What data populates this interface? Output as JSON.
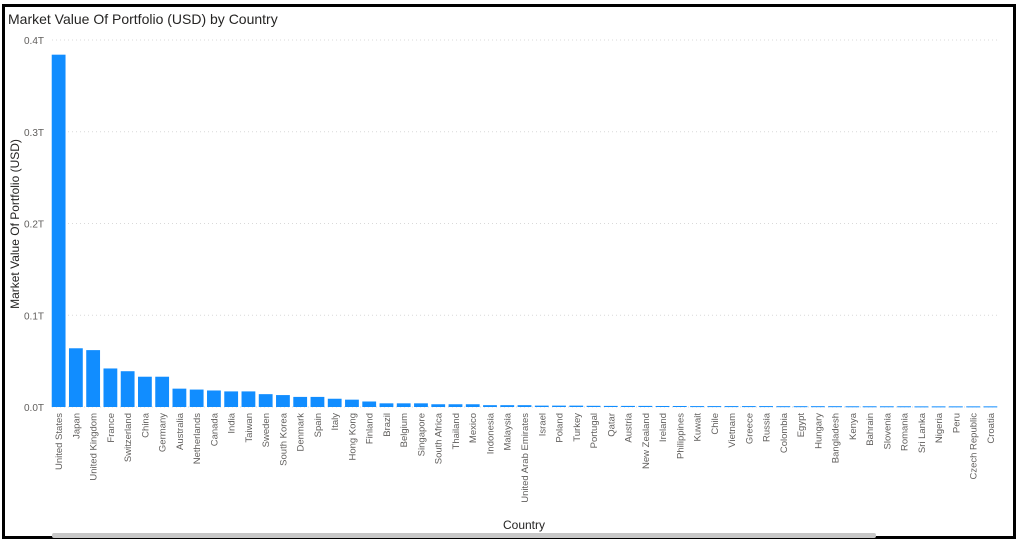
{
  "chart_data": {
    "type": "bar",
    "title": "Market Value Of Portfolio (USD) by Country",
    "xlabel": "Country",
    "ylabel": "Market Value Of Portfolio (USD)",
    "ylim": [
      0,
      0.4
    ],
    "yticks": [
      "0.0T",
      "0.1T",
      "0.2T",
      "0.3T",
      "0.4T"
    ],
    "grid": true,
    "color": "#118DFF",
    "categories": [
      "United States",
      "Japan",
      "United Kingdom",
      "France",
      "Switzerland",
      "China",
      "Germany",
      "Australia",
      "Netherlands",
      "Canada",
      "India",
      "Taiwan",
      "Sweden",
      "South Korea",
      "Denmark",
      "Spain",
      "Italy",
      "Hong Kong",
      "Finland",
      "Brazil",
      "Belgium",
      "Singapore",
      "South Africa",
      "Thailand",
      "Mexico",
      "Indonesia",
      "Malaysia",
      "United Arab Emirates",
      "Israel",
      "Poland",
      "Turkey",
      "Portugal",
      "Qatar",
      "Austria",
      "New Zealand",
      "Ireland",
      "Philippines",
      "Kuwait",
      "Chile",
      "Vietnam",
      "Greece",
      "Russia",
      "Colombia",
      "Egypt",
      "Hungary",
      "Bangladesh",
      "Kenya",
      "Bahrain",
      "Slovenia",
      "Romania",
      "Sri Lanka",
      "Nigeria",
      "Peru",
      "Czech Republic",
      "Croatia"
    ],
    "values": [
      0.384,
      0.064,
      0.062,
      0.042,
      0.039,
      0.033,
      0.033,
      0.02,
      0.019,
      0.018,
      0.017,
      0.017,
      0.014,
      0.013,
      0.011,
      0.011,
      0.009,
      0.008,
      0.006,
      0.004,
      0.004,
      0.004,
      0.003,
      0.003,
      0.003,
      0.002,
      0.002,
      0.002,
      0.0015,
      0.0015,
      0.0015,
      0.0013,
      0.0012,
      0.0012,
      0.0012,
      0.0011,
      0.0011,
      0.001,
      0.001,
      0.001,
      0.001,
      0.001,
      0.0009,
      0.0009,
      0.0009,
      0.0009,
      0.0008,
      0.0008,
      0.0008,
      0.0008,
      0.0007,
      0.0007,
      0.0007,
      0.0007,
      0.0007
    ]
  }
}
